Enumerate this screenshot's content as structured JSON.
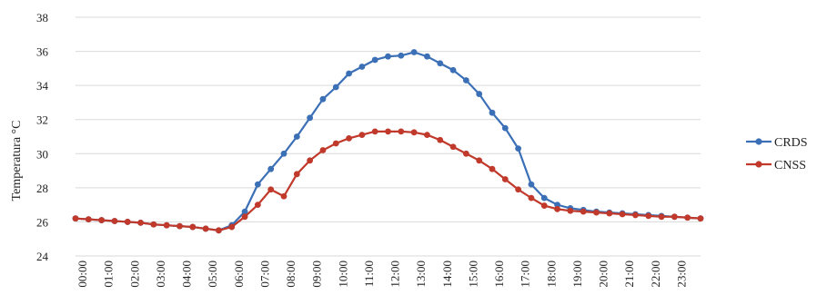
{
  "chart_data": {
    "type": "line",
    "title": "",
    "xlabel": "",
    "ylabel": "Temperatura °C",
    "ylim": [
      24,
      38
    ],
    "yticks": [
      24,
      26,
      28,
      30,
      32,
      34,
      36,
      38
    ],
    "grid": {
      "horizontal": true,
      "vertical": false
    },
    "legend_position": "right",
    "hour_labels": [
      "00:00",
      "01:00",
      "02:00",
      "03:00",
      "04:00",
      "05:00",
      "06:00",
      "07:00",
      "08:00",
      "09:00",
      "10:00",
      "11:00",
      "12:00",
      "13:00",
      "14:00",
      "15:00",
      "16:00",
      "17:00",
      "18:00",
      "19:00",
      "20:00",
      "21:00",
      "22:00",
      "23:00"
    ],
    "x": [
      0,
      0.5,
      1,
      1.5,
      2,
      2.5,
      3,
      3.5,
      4,
      4.5,
      5,
      5.5,
      6,
      6.5,
      7,
      7.5,
      8,
      8.5,
      9,
      9.5,
      10,
      10.5,
      11,
      11.5,
      12,
      12.5,
      13,
      13.5,
      14,
      14.5,
      15,
      15.5,
      16,
      16.5,
      17,
      17.5,
      18,
      18.5,
      19,
      19.5,
      20,
      20.5,
      21,
      21.5,
      22,
      22.5,
      23,
      23.5,
      24
    ],
    "series": [
      {
        "name": "CRDS",
        "color": "#3b6fb6",
        "values": [
          26.2,
          26.15,
          26.1,
          26.05,
          26.0,
          25.95,
          25.85,
          25.8,
          25.75,
          25.7,
          25.6,
          25.5,
          25.8,
          26.6,
          28.2,
          29.1,
          30.0,
          31.0,
          32.1,
          33.2,
          33.9,
          34.7,
          35.1,
          35.5,
          35.7,
          35.75,
          35.95,
          35.7,
          35.3,
          34.9,
          34.3,
          33.5,
          32.4,
          31.5,
          30.3,
          28.2,
          27.4,
          27.0,
          26.8,
          26.7,
          26.6,
          26.55,
          26.5,
          26.45,
          26.4,
          26.35,
          26.3,
          26.25,
          26.2
        ]
      },
      {
        "name": "CNSS",
        "color": "#c0392b",
        "values": [
          26.2,
          26.15,
          26.1,
          26.05,
          26.0,
          25.95,
          25.85,
          25.8,
          25.75,
          25.7,
          25.6,
          25.5,
          25.7,
          26.3,
          27.0,
          27.9,
          27.5,
          28.8,
          29.6,
          30.2,
          30.6,
          30.9,
          31.1,
          31.3,
          31.3,
          31.3,
          31.25,
          31.1,
          30.8,
          30.4,
          30.0,
          29.6,
          29.1,
          28.5,
          27.9,
          27.4,
          26.95,
          26.75,
          26.65,
          26.6,
          26.55,
          26.5,
          26.45,
          26.4,
          26.35,
          26.3,
          26.3,
          26.25,
          26.2
        ]
      }
    ]
  }
}
